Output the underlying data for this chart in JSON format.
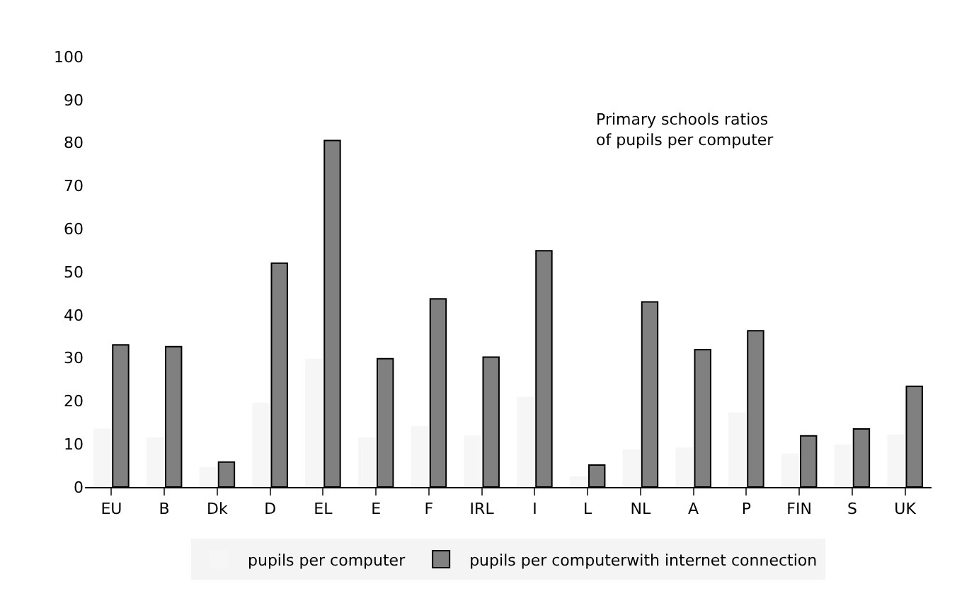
{
  "chart_data": {
    "type": "bar",
    "title": "Primary schools ratios\nof pupils per computer",
    "categories": [
      "EU",
      "B",
      "Dk",
      "D",
      "EL",
      "E",
      "F",
      "IRL",
      "I",
      "L",
      "NL",
      "A",
      "P",
      "FIN",
      "S",
      "UK"
    ],
    "series": [
      {
        "name": "pupils per computer",
        "color": "#f6f6f6",
        "values": [
          13.4,
          11.4,
          4.5,
          19.4,
          29.6,
          11.3,
          14,
          11.8,
          20.8,
          2.3,
          8.6,
          9,
          17.2,
          7.6,
          9.7,
          12
        ]
      },
      {
        "name": "pupils per computerwith internet connection",
        "color": "#808080",
        "values": [
          33,
          32.6,
          5.8,
          52,
          80.5,
          29.8,
          43.7,
          30.2,
          54.9,
          5.1,
          43,
          31.9,
          36.3,
          11.9,
          13.5,
          23.4
        ]
      }
    ],
    "ylim": [
      0,
      100
    ],
    "yticks": [
      0,
      10,
      20,
      30,
      40,
      50,
      60,
      70,
      80,
      90,
      100
    ],
    "legend": "bottom"
  }
}
